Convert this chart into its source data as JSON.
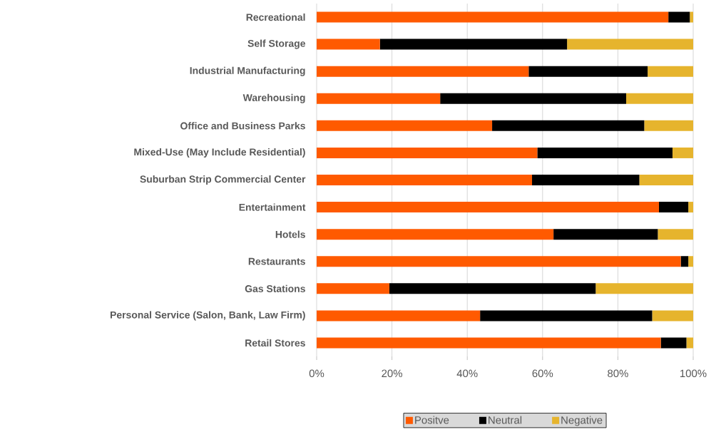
{
  "chart_data": {
    "type": "bar",
    "orientation": "horizontal",
    "stacked": true,
    "categories": [
      "Recreational",
      "Self Storage",
      "Industrial Manufacturing",
      "Warehousing",
      "Office and Business Parks",
      "Mixed-Use (May Include Residential)",
      "Suburban Strip Commercial Center",
      "Entertainment",
      "Hotels",
      "Restaurants",
      "Gas Stations",
      "Personal Service (Salon, Bank, Law Firm)",
      "Retail Stores"
    ],
    "series": [
      {
        "name": "Positve",
        "color": "#ff5a00",
        "values": [
          93.4,
          16.8,
          56.3,
          32.8,
          46.6,
          58.6,
          57.2,
          90.9,
          62.9,
          96.7,
          19.3,
          43.4,
          91.4
        ]
      },
      {
        "name": "Neutral",
        "color": "#000000",
        "values": [
          5.7,
          49.7,
          31.6,
          49.4,
          40.4,
          35.9,
          28.5,
          7.8,
          27.7,
          2.0,
          54.8,
          45.7,
          6.8
        ]
      },
      {
        "name": "Negative",
        "color": "#e6b42d",
        "values": [
          0.9,
          33.5,
          12.1,
          17.8,
          13.0,
          5.5,
          14.3,
          1.3,
          9.4,
          1.3,
          25.9,
          10.9,
          1.8
        ]
      }
    ],
    "xlim": [
      0,
      100
    ],
    "xticks": [
      {
        "value": 0,
        "label": "0%"
      },
      {
        "value": 20,
        "label": "20%"
      },
      {
        "value": 40,
        "label": "40%"
      },
      {
        "value": 60,
        "label": "60%"
      },
      {
        "value": 80,
        "label": "80%"
      },
      {
        "value": 100,
        "label": "100%"
      }
    ],
    "grid": "x",
    "legend": "bottom"
  }
}
